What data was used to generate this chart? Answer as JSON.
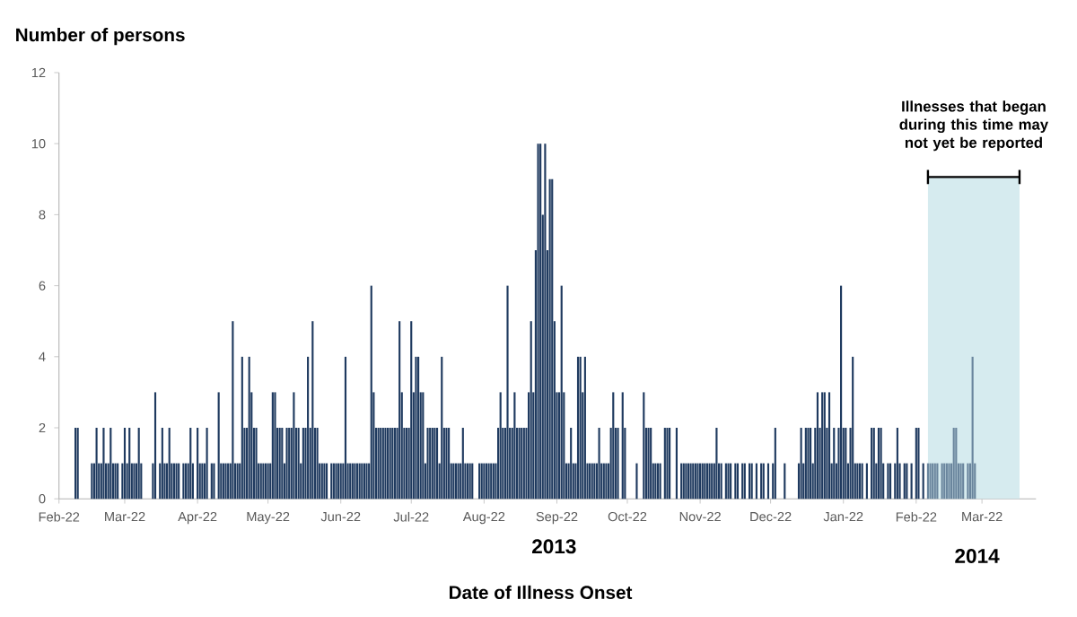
{
  "chart_data": {
    "type": "bar",
    "xlabel": "Date of Illness Onset",
    "ylabel": "Number of persons",
    "xlim": [
      "2013-02-22",
      "2014-04-14"
    ],
    "ylim": [
      0,
      12
    ],
    "yticks": [
      0,
      2,
      4,
      6,
      8,
      10,
      12
    ],
    "xticks": [
      {
        "value": "2013-02-22",
        "label": "Feb-22"
      },
      {
        "value": "2013-03-22",
        "label": "Mar-22"
      },
      {
        "value": "2013-04-22",
        "label": "Apr-22"
      },
      {
        "value": "2013-05-22",
        "label": "May-22"
      },
      {
        "value": "2013-06-22",
        "label": "Jun-22"
      },
      {
        "value": "2013-07-22",
        "label": "Jul-22"
      },
      {
        "value": "2013-08-22",
        "label": "Aug-22"
      },
      {
        "value": "2013-09-22",
        "label": "Sep-22"
      },
      {
        "value": "2013-10-22",
        "label": "Oct-22"
      },
      {
        "value": "2013-11-22",
        "label": "Nov-22"
      },
      {
        "value": "2013-12-22",
        "label": "Dec-22"
      },
      {
        "value": "2014-01-22",
        "label": "Jan-22"
      },
      {
        "value": "2014-02-22",
        "label": "Feb-22"
      },
      {
        "value": "2014-03-22",
        "label": "Mar-22"
      }
    ],
    "grid": false,
    "bands": [
      {
        "axis": "x",
        "from": "2014-02-27",
        "to": "2014-04-07",
        "label": "Illnesses that began during this time may not yet be reported",
        "color": "#d6ebef"
      }
    ],
    "annotations": [
      "2013",
      "2014"
    ],
    "series": [
      {
        "color": "#1f3a5f",
        "x": [
          "2013-03-01",
          "2013-03-02",
          "2013-03-03",
          "2013-03-04",
          "2013-03-05",
          "2013-03-06",
          "2013-03-07",
          "2013-03-08",
          "2013-03-09",
          "2013-03-10",
          "2013-03-11",
          "2013-03-12",
          "2013-03-13",
          "2013-03-14",
          "2013-03-15",
          "2013-03-16",
          "2013-03-17",
          "2013-03-18",
          "2013-03-19",
          "2013-03-20",
          "2013-03-21",
          "2013-03-22",
          "2013-03-23",
          "2013-03-24",
          "2013-03-25",
          "2013-03-26",
          "2013-03-27",
          "2013-03-28",
          "2013-03-29",
          "2013-03-30",
          "2013-03-31",
          "2013-04-01",
          "2013-04-02",
          "2013-04-03",
          "2013-04-04",
          "2013-04-05",
          "2013-04-06",
          "2013-04-07",
          "2013-04-08",
          "2013-04-09",
          "2013-04-10",
          "2013-04-11",
          "2013-04-12",
          "2013-04-13",
          "2013-04-14",
          "2013-04-15",
          "2013-04-16",
          "2013-04-17",
          "2013-04-18",
          "2013-04-19",
          "2013-04-20",
          "2013-04-21",
          "2013-04-22",
          "2013-04-23",
          "2013-04-24",
          "2013-04-25",
          "2013-04-26",
          "2013-04-27",
          "2013-04-28",
          "2013-04-29",
          "2013-04-30",
          "2013-05-01",
          "2013-05-02",
          "2013-05-03",
          "2013-05-04",
          "2013-05-05",
          "2013-05-06",
          "2013-05-07",
          "2013-05-08",
          "2013-05-09",
          "2013-05-10",
          "2013-05-11",
          "2013-05-12",
          "2013-05-13",
          "2013-05-14",
          "2013-05-15",
          "2013-05-16",
          "2013-05-17",
          "2013-05-18",
          "2013-05-19",
          "2013-05-20",
          "2013-05-21",
          "2013-05-22",
          "2013-05-23",
          "2013-05-24",
          "2013-05-25",
          "2013-05-26",
          "2013-05-27",
          "2013-05-28",
          "2013-05-29",
          "2013-05-30",
          "2013-05-31",
          "2013-06-01",
          "2013-06-02",
          "2013-06-03",
          "2013-06-04",
          "2013-06-05",
          "2013-06-06",
          "2013-06-07",
          "2013-06-08",
          "2013-06-09",
          "2013-06-10",
          "2013-06-11",
          "2013-06-12",
          "2013-06-13",
          "2013-06-14",
          "2013-06-15",
          "2013-06-16",
          "2013-06-17",
          "2013-06-18",
          "2013-06-19",
          "2013-06-20",
          "2013-06-21",
          "2013-06-22",
          "2013-06-23",
          "2013-06-24",
          "2013-06-25",
          "2013-06-26",
          "2013-06-27",
          "2013-06-28",
          "2013-06-29",
          "2013-06-30",
          "2013-07-01",
          "2013-07-02",
          "2013-07-03",
          "2013-07-04",
          "2013-07-05",
          "2013-07-06",
          "2013-07-07",
          "2013-07-08",
          "2013-07-09",
          "2013-07-10",
          "2013-07-11",
          "2013-07-12",
          "2013-07-13",
          "2013-07-14",
          "2013-07-15",
          "2013-07-16",
          "2013-07-17",
          "2013-07-18",
          "2013-07-19",
          "2013-07-20",
          "2013-07-21",
          "2013-07-22",
          "2013-07-23",
          "2013-07-24",
          "2013-07-25",
          "2013-07-26",
          "2013-07-27",
          "2013-07-28",
          "2013-07-29",
          "2013-07-30",
          "2013-07-31",
          "2013-08-01",
          "2013-08-02",
          "2013-08-03",
          "2013-08-04",
          "2013-08-05",
          "2013-08-06",
          "2013-08-07",
          "2013-08-08",
          "2013-08-09",
          "2013-08-10",
          "2013-08-11",
          "2013-08-12",
          "2013-08-13",
          "2013-08-14",
          "2013-08-15",
          "2013-08-16",
          "2013-08-17",
          "2013-08-18",
          "2013-08-19",
          "2013-08-20",
          "2013-08-21",
          "2013-08-22",
          "2013-08-23",
          "2013-08-24",
          "2013-08-25",
          "2013-08-26",
          "2013-08-27",
          "2013-08-28",
          "2013-08-29",
          "2013-08-30",
          "2013-08-31",
          "2013-09-01",
          "2013-09-02",
          "2013-09-03",
          "2013-09-04",
          "2013-09-05",
          "2013-09-06",
          "2013-09-07",
          "2013-09-08",
          "2013-09-09",
          "2013-09-10",
          "2013-09-11",
          "2013-09-12",
          "2013-09-13",
          "2013-09-14",
          "2013-09-15",
          "2013-09-16",
          "2013-09-17",
          "2013-09-18",
          "2013-09-19",
          "2013-09-20",
          "2013-09-21",
          "2013-09-22",
          "2013-09-23",
          "2013-09-24",
          "2013-09-25",
          "2013-09-26",
          "2013-09-27",
          "2013-09-28",
          "2013-09-29",
          "2013-09-30",
          "2013-10-01",
          "2013-10-02",
          "2013-10-03",
          "2013-10-04",
          "2013-10-05",
          "2013-10-06",
          "2013-10-07",
          "2013-10-08",
          "2013-10-09",
          "2013-10-10",
          "2013-10-11",
          "2013-10-12",
          "2013-10-13",
          "2013-10-14",
          "2013-10-15",
          "2013-10-16",
          "2013-10-17",
          "2013-10-18",
          "2013-10-19",
          "2013-10-20",
          "2013-10-21",
          "2013-10-22",
          "2013-10-23",
          "2013-10-24",
          "2013-10-25",
          "2013-10-26",
          "2013-10-27",
          "2013-10-28",
          "2013-10-29",
          "2013-10-30",
          "2013-10-31",
          "2013-11-01",
          "2013-11-02",
          "2013-11-03",
          "2013-11-04",
          "2013-11-05",
          "2013-11-06",
          "2013-11-07",
          "2013-11-08",
          "2013-11-09",
          "2013-11-10",
          "2013-11-11",
          "2013-11-12",
          "2013-11-13",
          "2013-11-14",
          "2013-11-15",
          "2013-11-16",
          "2013-11-17",
          "2013-11-18",
          "2013-11-19",
          "2013-11-20",
          "2013-11-21",
          "2013-11-22",
          "2013-11-23",
          "2013-11-24",
          "2013-11-25",
          "2013-11-26",
          "2013-11-27",
          "2013-11-28",
          "2013-11-29",
          "2013-11-30",
          "2013-12-01",
          "2013-12-02",
          "2013-12-03",
          "2013-12-04",
          "2013-12-05",
          "2013-12-06",
          "2013-12-07",
          "2013-12-08",
          "2013-12-09",
          "2013-12-10",
          "2013-12-11",
          "2013-12-12",
          "2013-12-13",
          "2013-12-14",
          "2013-12-15",
          "2013-12-16",
          "2013-12-17",
          "2013-12-18",
          "2013-12-19",
          "2013-12-20",
          "2013-12-21",
          "2013-12-22",
          "2013-12-23",
          "2013-12-24",
          "2013-12-25",
          "2013-12-26",
          "2013-12-27",
          "2013-12-28",
          "2013-12-29",
          "2013-12-30",
          "2013-12-31",
          "2014-01-01",
          "2014-01-02",
          "2014-01-03",
          "2014-01-04",
          "2014-01-05",
          "2014-01-06",
          "2014-01-07",
          "2014-01-08",
          "2014-01-09",
          "2014-01-10",
          "2014-01-11",
          "2014-01-12",
          "2014-01-13",
          "2014-01-14",
          "2014-01-15",
          "2014-01-16",
          "2014-01-17",
          "2014-01-18",
          "2014-01-19",
          "2014-01-20",
          "2014-01-21",
          "2014-01-22",
          "2014-01-23",
          "2014-01-24",
          "2014-01-25",
          "2014-01-26",
          "2014-01-27",
          "2014-01-28",
          "2014-01-29",
          "2014-01-30",
          "2014-01-31",
          "2014-02-01",
          "2014-02-02",
          "2014-02-03",
          "2014-02-04",
          "2014-02-05",
          "2014-02-06",
          "2014-02-07",
          "2014-02-08",
          "2014-02-09",
          "2014-02-10",
          "2014-02-11",
          "2014-02-12",
          "2014-02-13",
          "2014-02-14",
          "2014-02-15",
          "2014-02-16",
          "2014-02-17",
          "2014-02-18",
          "2014-02-19",
          "2014-02-20",
          "2014-02-21",
          "2014-02-22",
          "2014-02-23",
          "2014-02-24",
          "2014-02-25",
          "2014-02-26"
        ],
        "values": [
          2,
          2,
          0,
          0,
          0,
          0,
          0,
          1,
          1,
          2,
          1,
          1,
          2,
          1,
          1,
          2,
          1,
          1,
          1,
          0,
          1,
          2,
          1,
          2,
          1,
          1,
          1,
          2,
          1,
          0,
          0,
          0,
          0,
          1,
          3,
          0,
          1,
          2,
          1,
          1,
          2,
          1,
          1,
          1,
          1,
          0,
          1,
          1,
          1,
          2,
          1,
          0,
          2,
          1,
          1,
          1,
          2,
          0,
          1,
          1,
          0,
          3,
          1,
          1,
          1,
          1,
          1,
          5,
          1,
          1,
          1,
          4,
          2,
          2,
          4,
          3,
          2,
          2,
          1,
          1,
          1,
          1,
          1,
          1,
          3,
          3,
          2,
          2,
          2,
          1,
          2,
          2,
          2,
          3,
          2,
          2,
          1,
          2,
          2,
          4,
          2,
          5,
          2,
          2,
          1,
          1,
          1,
          1,
          0,
          1,
          1,
          1,
          1,
          1,
          1,
          4,
          1,
          1,
          1,
          1,
          1,
          1,
          1,
          1,
          1,
          1,
          6,
          3,
          2,
          2,
          2,
          2,
          2,
          2,
          2,
          2,
          2,
          2,
          5,
          3,
          2,
          2,
          2,
          5,
          3,
          4,
          4,
          3,
          3,
          1,
          2,
          2,
          2,
          2,
          2,
          1,
          4,
          2,
          2,
          2,
          1,
          1,
          1,
          1,
          1,
          2,
          1,
          1,
          1,
          1,
          0,
          0,
          1,
          1,
          1,
          1,
          1,
          1,
          1,
          1,
          2,
          3,
          2,
          2,
          6,
          2,
          2,
          3,
          2,
          2,
          2,
          2,
          2,
          3,
          5,
          3,
          7,
          10,
          10,
          8,
          10,
          7,
          9,
          9,
          5,
          3,
          3,
          6,
          3,
          1,
          1,
          2,
          1,
          1,
          4,
          4,
          3,
          4,
          1,
          1,
          1,
          1,
          1,
          2,
          1,
          1,
          1,
          1,
          2,
          3,
          2,
          2,
          0,
          3,
          2,
          0,
          0,
          0,
          0,
          1,
          0,
          0,
          3,
          2,
          2,
          2,
          1,
          1,
          1,
          1,
          0,
          2,
          2,
          2,
          0,
          0,
          2,
          0,
          1,
          1,
          1,
          1,
          1,
          1,
          1,
          1,
          1,
          1,
          1,
          1,
          1,
          1,
          1,
          2,
          1,
          1,
          0,
          1,
          1,
          1,
          0,
          1,
          1,
          0,
          1,
          1,
          0,
          1,
          1,
          0,
          1,
          0,
          1,
          1,
          0,
          1,
          0,
          1,
          2,
          0,
          0,
          0,
          1,
          0,
          0,
          0,
          0,
          0,
          1,
          2,
          1,
          2,
          2,
          2,
          1,
          2,
          3,
          2,
          3,
          3,
          2,
          3,
          1,
          2,
          1,
          2,
          6,
          2,
          2,
          1,
          2,
          4,
          1,
          1,
          1,
          1,
          0,
          1,
          0,
          2,
          2,
          1,
          2,
          2,
          1,
          0,
          1,
          1,
          0,
          1,
          2,
          1,
          0,
          1,
          1,
          0,
          1,
          0,
          2,
          2,
          0,
          1,
          0
        ]
      },
      {
        "color": "#6a859d",
        "x": [
          "2014-02-27",
          "2014-02-28",
          "2014-03-01",
          "2014-03-02",
          "2014-03-03",
          "2014-03-04",
          "2014-03-05",
          "2014-03-06",
          "2014-03-07",
          "2014-03-08",
          "2014-03-09",
          "2014-03-10",
          "2014-03-11",
          "2014-03-12",
          "2014-03-13",
          "2014-03-14",
          "2014-03-15",
          "2014-03-16",
          "2014-03-17",
          "2014-03-18",
          "2014-03-19"
        ],
        "values": [
          1,
          1,
          1,
          1,
          1,
          0,
          1,
          1,
          1,
          1,
          1,
          2,
          2,
          1,
          1,
          1,
          0,
          1,
          1,
          4,
          1
        ]
      }
    ]
  }
}
